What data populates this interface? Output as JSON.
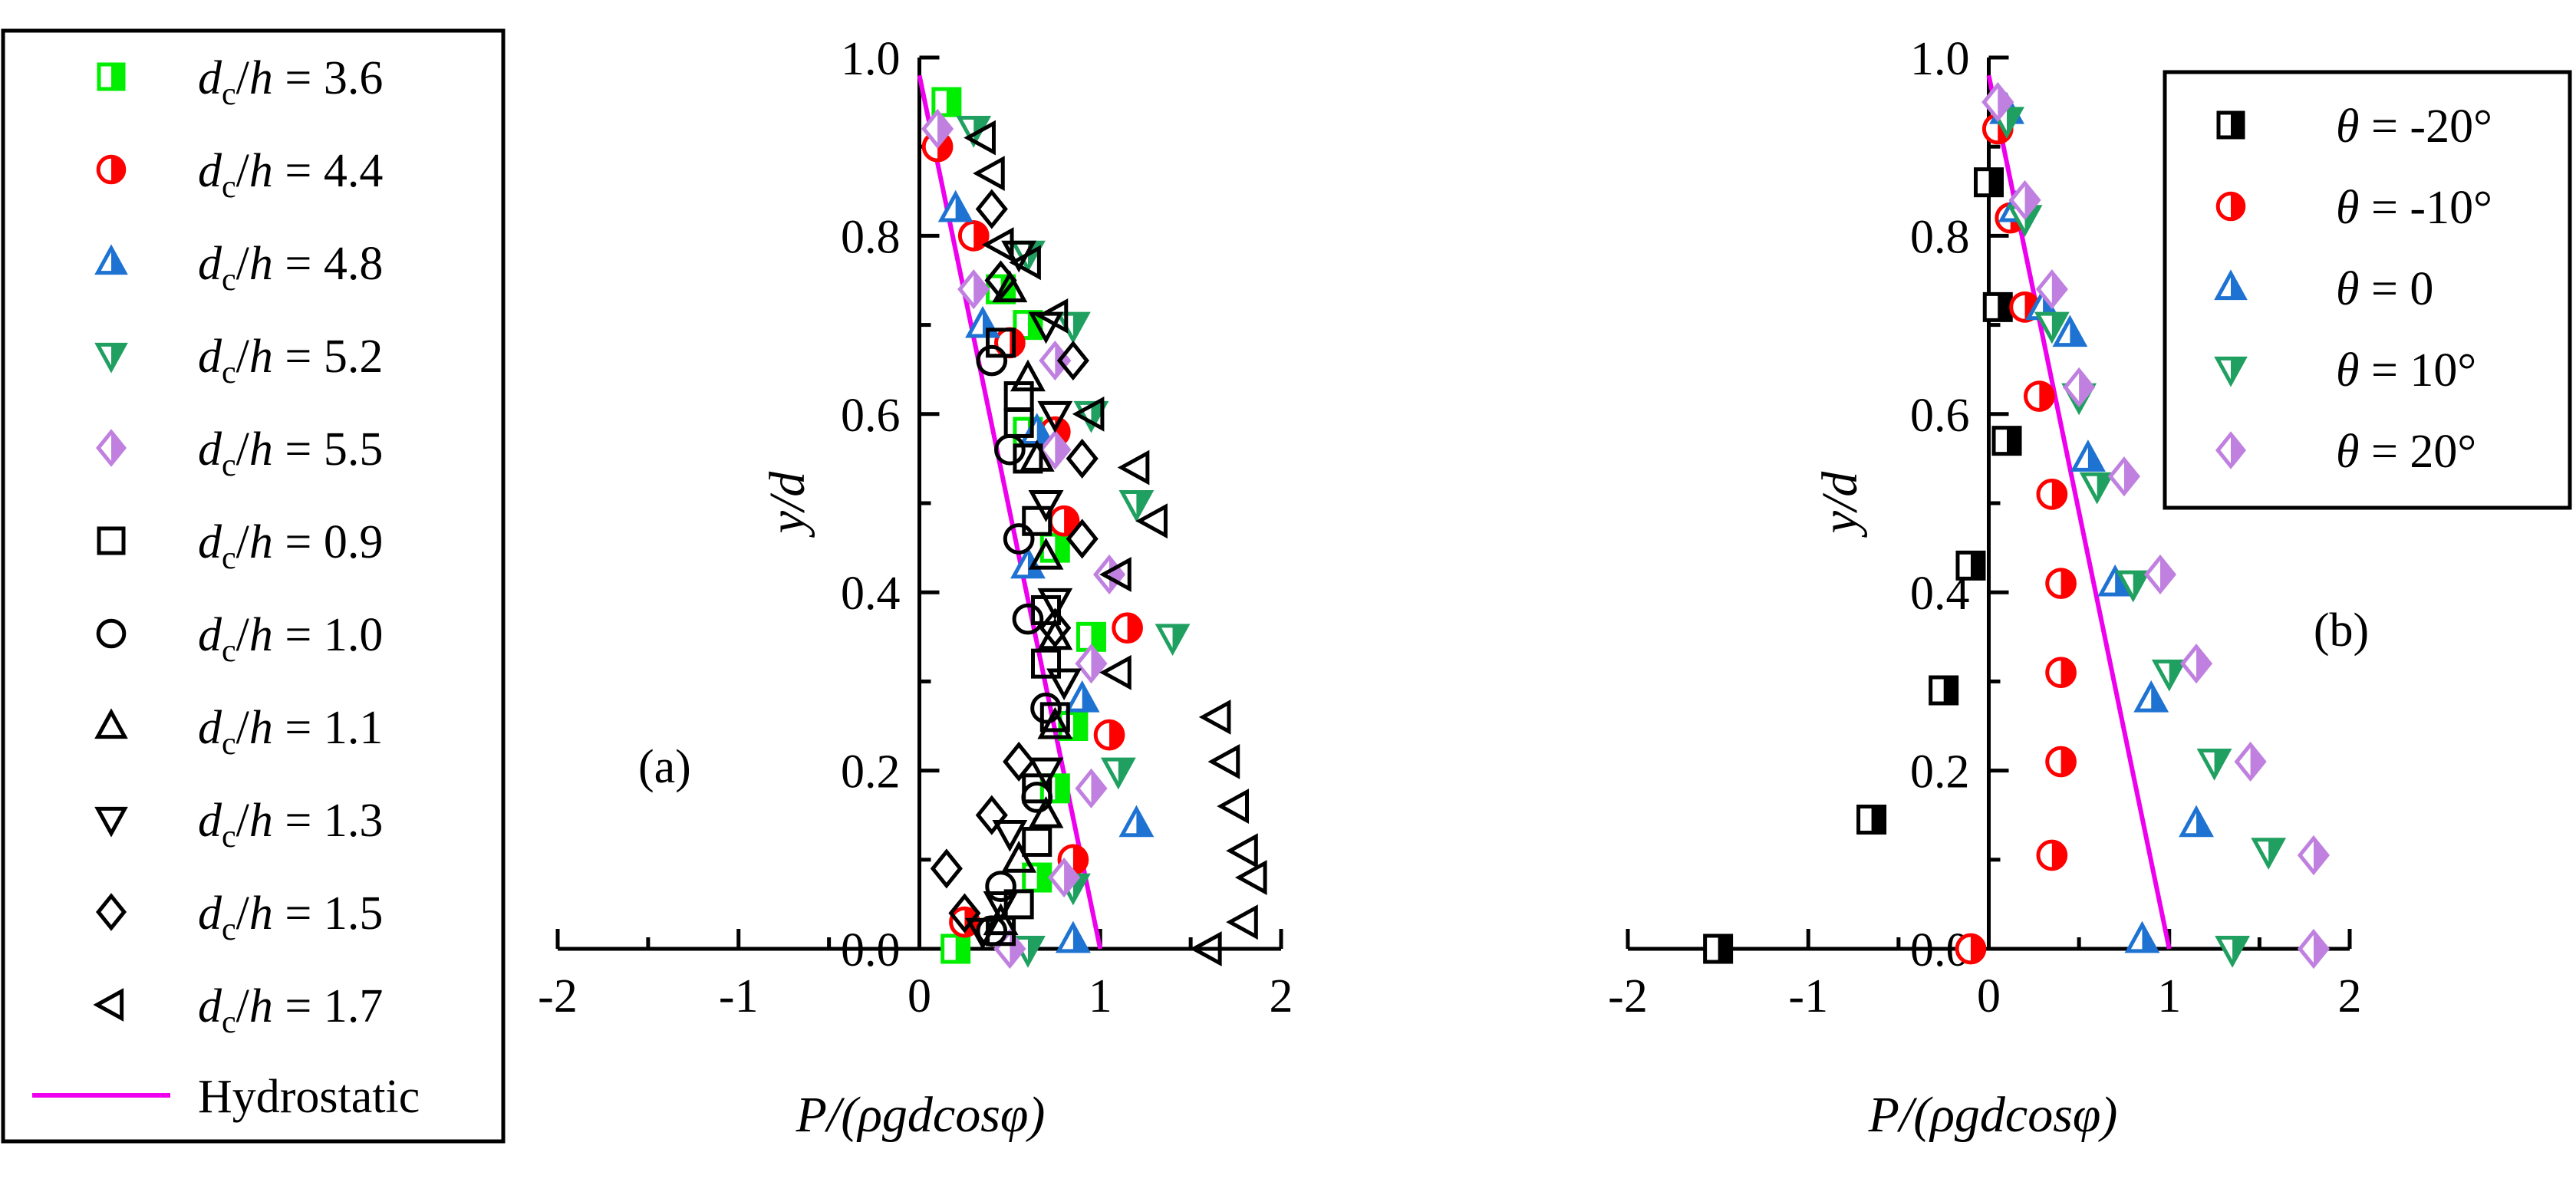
{
  "legend_a": {
    "entries": [
      {
        "var": "d",
        "sub": "c",
        "tail": "/h = 3.6",
        "marker": "square-half",
        "color": "#00EE00"
      },
      {
        "var": "d",
        "sub": "c",
        "tail": "/h = 4.4",
        "marker": "circle-half",
        "color": "#FF0000"
      },
      {
        "var": "d",
        "sub": "c",
        "tail": "/h = 4.8",
        "marker": "triangle-half",
        "color": "#1E73D2"
      },
      {
        "var": "d",
        "sub": "c",
        "tail": "/h = 5.2",
        "marker": "triangle-down-half",
        "color": "#20A060"
      },
      {
        "var": "d",
        "sub": "c",
        "tail": "/h = 5.5",
        "marker": "diamond-half",
        "color": "#C080E0"
      },
      {
        "var": "d",
        "sub": "c",
        "tail": "/h = 0.9",
        "marker": "square-open",
        "color": "#000000"
      },
      {
        "var": "d",
        "sub": "c",
        "tail": "/h = 1.0",
        "marker": "circle-open",
        "color": "#000000"
      },
      {
        "var": "d",
        "sub": "c",
        "tail": "/h = 1.1",
        "marker": "triangle-open",
        "color": "#000000"
      },
      {
        "var": "d",
        "sub": "c",
        "tail": "/h = 1.3",
        "marker": "triangle-down-open",
        "color": "#000000"
      },
      {
        "var": "d",
        "sub": "c",
        "tail": "/h = 1.5",
        "marker": "diamond-open",
        "color": "#000000"
      },
      {
        "var": "d",
        "sub": "c",
        "tail": "/h = 1.7",
        "marker": "triangle-left-open",
        "color": "#000000"
      }
    ],
    "hydrostatic_label": "Hydrostatic",
    "hydrostatic_color": "#EE00EE"
  },
  "chart_data": [
    {
      "panel": "(a)",
      "type": "scatter",
      "xlabel": "P/(ρgdcosφ)",
      "ylabel": "y/d",
      "xlim": [
        -2,
        2
      ],
      "ylim": [
        0,
        1.0
      ],
      "xticks": [
        "-2",
        "-1",
        "0",
        "1",
        "2"
      ],
      "yticks": [
        "0.0",
        "0.2",
        "0.4",
        "0.6",
        "0.8",
        "1.0"
      ],
      "reference_line": {
        "name": "Hydrostatic",
        "points": [
          [
            0,
            0.98
          ],
          [
            1.0,
            0.0
          ]
        ]
      },
      "series": [
        {
          "name": "dc/h = 3.6",
          "marker": "square-half",
          "color": "#00EE00",
          "points": [
            [
              0.15,
              0.95
            ],
            [
              0.45,
              0.74
            ],
            [
              0.6,
              0.7
            ],
            [
              0.6,
              0.58
            ],
            [
              0.75,
              0.45
            ],
            [
              0.95,
              0.35
            ],
            [
              0.85,
              0.25
            ],
            [
              0.75,
              0.18
            ],
            [
              0.65,
              0.08
            ],
            [
              0.2,
              0.0
            ]
          ]
        },
        {
          "name": "dc/h = 4.4",
          "marker": "circle-half",
          "color": "#FF0000",
          "points": [
            [
              0.1,
              0.9
            ],
            [
              0.3,
              0.8
            ],
            [
              0.5,
              0.68
            ],
            [
              0.75,
              0.58
            ],
            [
              0.8,
              0.48
            ],
            [
              1.15,
              0.36
            ],
            [
              1.05,
              0.24
            ],
            [
              0.85,
              0.1
            ],
            [
              0.25,
              0.03
            ]
          ]
        },
        {
          "name": "dc/h = 4.8",
          "marker": "triangle-half",
          "color": "#1E73D2",
          "points": [
            [
              0.2,
              0.83
            ],
            [
              0.35,
              0.7
            ],
            [
              0.65,
              0.58
            ],
            [
              0.6,
              0.43
            ],
            [
              0.9,
              0.28
            ],
            [
              1.2,
              0.14
            ],
            [
              0.85,
              0.01
            ]
          ]
        },
        {
          "name": "dc/h = 5.2",
          "marker": "triangle-down-half",
          "color": "#20A060",
          "points": [
            [
              0.3,
              0.92
            ],
            [
              0.6,
              0.78
            ],
            [
              0.85,
              0.7
            ],
            [
              0.95,
              0.6
            ],
            [
              1.2,
              0.5
            ],
            [
              1.4,
              0.35
            ],
            [
              1.1,
              0.2
            ],
            [
              0.85,
              0.07
            ],
            [
              0.6,
              0.0
            ]
          ]
        },
        {
          "name": "dc/h = 5.5",
          "marker": "diamond-half",
          "color": "#C080E0",
          "points": [
            [
              0.1,
              0.92
            ],
            [
              0.3,
              0.74
            ],
            [
              0.75,
              0.66
            ],
            [
              0.75,
              0.56
            ],
            [
              1.05,
              0.42
            ],
            [
              0.95,
              0.32
            ],
            [
              0.95,
              0.18
            ],
            [
              0.8,
              0.08
            ],
            [
              0.5,
              0.0
            ]
          ]
        },
        {
          "name": "dc/h = 0.9",
          "marker": "square-open",
          "color": "#000000",
          "points": [
            [
              0.45,
              0.68
            ],
            [
              0.55,
              0.62
            ],
            [
              0.55,
              0.59
            ],
            [
              0.6,
              0.55
            ],
            [
              0.65,
              0.48
            ],
            [
              0.7,
              0.38
            ],
            [
              0.7,
              0.32
            ],
            [
              0.75,
              0.26
            ],
            [
              0.65,
              0.18
            ],
            [
              0.65,
              0.12
            ],
            [
              0.55,
              0.05
            ],
            [
              0.45,
              0.02
            ]
          ]
        },
        {
          "name": "dc/h = 1.0",
          "marker": "circle-open",
          "color": "#000000",
          "points": [
            [
              0.4,
              0.66
            ],
            [
              0.5,
              0.56
            ],
            [
              0.55,
              0.46
            ],
            [
              0.6,
              0.37
            ],
            [
              0.7,
              0.27
            ],
            [
              0.65,
              0.17
            ],
            [
              0.45,
              0.07
            ],
            [
              0.4,
              0.02
            ]
          ]
        },
        {
          "name": "dc/h = 1.1",
          "marker": "triangle-open",
          "color": "#000000",
          "points": [
            [
              0.5,
              0.74
            ],
            [
              0.6,
              0.64
            ],
            [
              0.65,
              0.55
            ],
            [
              0.7,
              0.44
            ],
            [
              0.75,
              0.35
            ],
            [
              0.75,
              0.25
            ],
            [
              0.7,
              0.15
            ],
            [
              0.55,
              0.1
            ],
            [
              0.45,
              0.03
            ]
          ]
        },
        {
          "name": "dc/h = 1.3",
          "marker": "triangle-down-open",
          "color": "#000000",
          "points": [
            [
              0.55,
              0.78
            ],
            [
              0.7,
              0.7
            ],
            [
              0.75,
              0.6
            ],
            [
              0.7,
              0.5
            ],
            [
              0.75,
              0.39
            ],
            [
              0.8,
              0.3
            ],
            [
              0.7,
              0.2
            ],
            [
              0.5,
              0.13
            ],
            [
              0.45,
              0.05
            ],
            [
              0.35,
              0.02
            ]
          ]
        },
        {
          "name": "dc/h = 1.5",
          "marker": "diamond-open",
          "color": "#000000",
          "points": [
            [
              0.4,
              0.83
            ],
            [
              0.45,
              0.75
            ],
            [
              0.85,
              0.66
            ],
            [
              0.9,
              0.55
            ],
            [
              0.9,
              0.46
            ],
            [
              0.75,
              0.36
            ],
            [
              0.55,
              0.21
            ],
            [
              0.4,
              0.15
            ],
            [
              0.15,
              0.09
            ],
            [
              0.25,
              0.04
            ]
          ]
        },
        {
          "name": "dc/h = 1.7",
          "marker": "triangle-left-open",
          "color": "#000000",
          "points": [
            [
              0.35,
              0.91
            ],
            [
              0.4,
              0.87
            ],
            [
              0.45,
              0.79
            ],
            [
              0.6,
              0.77
            ],
            [
              0.75,
              0.71
            ],
            [
              0.95,
              0.6
            ],
            [
              1.2,
              0.54
            ],
            [
              1.3,
              0.48
            ],
            [
              1.1,
              0.42
            ],
            [
              1.1,
              0.31
            ],
            [
              1.65,
              0.26
            ],
            [
              1.7,
              0.21
            ],
            [
              1.75,
              0.16
            ],
            [
              1.8,
              0.11
            ],
            [
              1.85,
              0.08
            ],
            [
              1.8,
              0.03
            ],
            [
              1.6,
              0.0
            ]
          ]
        }
      ]
    },
    {
      "panel": "(b)",
      "type": "scatter",
      "xlabel": "P/(ρgdcosφ)",
      "ylabel": "y/d",
      "xlim": [
        -2,
        2
      ],
      "ylim": [
        0,
        1.0
      ],
      "xticks": [
        "-2",
        "-1",
        "0",
        "1",
        "2"
      ],
      "yticks": [
        "0.0",
        "0.2",
        "0.4",
        "0.6",
        "0.8",
        "1.0"
      ],
      "reference_line": {
        "name": "Hydrostatic",
        "points": [
          [
            0,
            0.98
          ],
          [
            1.0,
            0.0
          ]
        ]
      },
      "legend": [
        "θ = -20°",
        "θ = -10°",
        "θ = 0",
        "θ = 10°",
        "θ = 20°"
      ],
      "series": [
        {
          "name": "θ = -20°",
          "marker": "square-half",
          "color": "#000000",
          "points": [
            [
              0.0,
              0.86
            ],
            [
              0.05,
              0.72
            ],
            [
              0.1,
              0.57
            ],
            [
              -0.1,
              0.43
            ],
            [
              -0.25,
              0.29
            ],
            [
              -0.65,
              0.145
            ],
            [
              -1.5,
              0.0
            ]
          ]
        },
        {
          "name": "θ = -10°",
          "marker": "circle-half",
          "color": "#FF0000",
          "points": [
            [
              0.05,
              0.92
            ],
            [
              0.12,
              0.82
            ],
            [
              0.2,
              0.72
            ],
            [
              0.28,
              0.62
            ],
            [
              0.35,
              0.51
            ],
            [
              0.4,
              0.41
            ],
            [
              0.4,
              0.31
            ],
            [
              0.4,
              0.21
            ],
            [
              0.35,
              0.105
            ],
            [
              -0.1,
              0.0
            ]
          ]
        },
        {
          "name": "θ = 0",
          "marker": "triangle-half",
          "color": "#1E73D2",
          "points": [
            [
              0.1,
              0.94
            ],
            [
              0.15,
              0.83
            ],
            [
              0.3,
              0.72
            ],
            [
              0.45,
              0.69
            ],
            [
              0.55,
              0.55
            ],
            [
              0.7,
              0.41
            ],
            [
              0.9,
              0.28
            ],
            [
              1.15,
              0.14
            ],
            [
              0.85,
              0.01
            ]
          ]
        },
        {
          "name": "θ = 10°",
          "marker": "triangle-down-half",
          "color": "#20A060",
          "points": [
            [
              0.1,
              0.93
            ],
            [
              0.2,
              0.82
            ],
            [
              0.35,
              0.7
            ],
            [
              0.5,
              0.62
            ],
            [
              0.6,
              0.52
            ],
            [
              0.8,
              0.41
            ],
            [
              1.0,
              0.31
            ],
            [
              1.25,
              0.21
            ],
            [
              1.55,
              0.11
            ],
            [
              1.35,
              0.0
            ]
          ]
        },
        {
          "name": "θ = 20°",
          "marker": "diamond-half",
          "color": "#C080E0",
          "points": [
            [
              0.05,
              0.95
            ],
            [
              0.2,
              0.84
            ],
            [
              0.35,
              0.74
            ],
            [
              0.5,
              0.63
            ],
            [
              0.75,
              0.53
            ],
            [
              0.95,
              0.42
            ],
            [
              1.15,
              0.32
            ],
            [
              1.45,
              0.21
            ],
            [
              1.8,
              0.105
            ],
            [
              1.8,
              0.0
            ]
          ]
        }
      ],
      "legend_entries": [
        {
          "label": "θ = -20°",
          "marker": "square-half",
          "color": "#000000"
        },
        {
          "label": "θ = -10°",
          "marker": "circle-half",
          "color": "#FF0000"
        },
        {
          "label": "θ = 0",
          "marker": "triangle-half",
          "color": "#1E73D2"
        },
        {
          "label": "θ = 10°",
          "marker": "triangle-down-half",
          "color": "#20A060"
        },
        {
          "label": "θ = 20°",
          "marker": "diamond-half",
          "color": "#C080E0"
        }
      ]
    }
  ]
}
